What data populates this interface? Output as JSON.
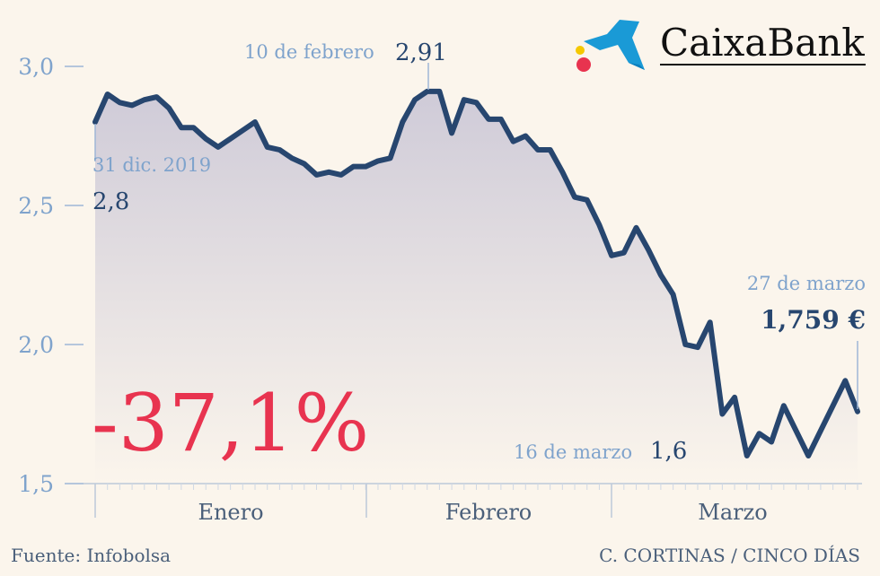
{
  "chart_data": {
    "type": "area",
    "yticks": [
      "3,0",
      "2,5",
      "2,0",
      "1,5"
    ],
    "ytick_values": [
      3.0,
      2.5,
      2.0,
      1.5
    ],
    "ylim": [
      1.5,
      3.0
    ],
    "months": [
      "Enero",
      "Febrero",
      "Marzo"
    ],
    "series": [
      {
        "values": [
          2.8,
          2.9,
          2.87,
          2.86,
          2.88,
          2.89,
          2.85,
          2.78,
          2.78,
          2.74,
          2.71,
          2.74,
          2.77,
          2.8,
          2.71,
          2.7,
          2.67,
          2.65,
          2.61,
          2.62,
          2.61,
          2.64,
          2.64,
          2.66,
          2.67,
          2.8,
          2.88,
          2.91,
          2.91,
          2.76,
          2.88,
          2.87,
          2.81,
          2.81,
          2.73,
          2.75,
          2.7,
          2.7,
          2.62,
          2.53,
          2.52,
          2.43,
          2.32,
          2.33,
          2.42,
          2.34,
          2.25,
          2.18,
          2.0,
          1.99,
          2.08,
          1.75,
          1.81,
          1.6,
          1.68,
          1.65,
          1.78,
          1.69,
          1.6,
          1.69,
          1.78,
          1.87,
          1.759
        ]
      }
    ],
    "colors": {
      "line": "#27466f",
      "axis_text": "#7fa3cc",
      "change": "#e8334f",
      "fill_top": "#d3d0dc"
    }
  },
  "annotations": {
    "start_date": "31 dic. 2019",
    "start_value": "2,8",
    "peak_date": "10 de febrero",
    "peak_value": "2,91",
    "low_date": "16 de marzo",
    "low_value": "1,6",
    "end_date": "27 de marzo",
    "end_value": "1,759 €",
    "change": "-37,1%"
  },
  "brand": {
    "name": "CaixaBank",
    "icon": "caixabank-star-logo"
  },
  "footer": {
    "source": "Fuente: Infobolsa",
    "credit": "C. CORTINAS / CINCO DÍAS"
  }
}
